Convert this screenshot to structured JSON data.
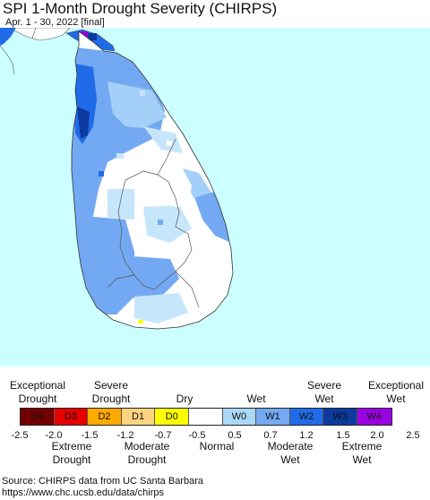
{
  "header": {
    "title": "SPI 1-Month Drought Severity (CHIRPS)",
    "subtitle": "Apr. 1 - 30, 2022 [final]"
  },
  "map": {
    "sea_color": "#ccffff",
    "land_normal_color": "#ffffff",
    "w_light_color": "#c6e6fb",
    "w0_color": "#a4cff9",
    "w1_color": "#73a9f2",
    "w2_color": "#1f6be8",
    "w3_color": "#0c3a9e",
    "d0_color": "#ffff00",
    "boundary_color": "#555555"
  },
  "legend": {
    "categories": [
      {
        "code": "D4",
        "color": "#730000"
      },
      {
        "code": "D3",
        "color": "#e60000"
      },
      {
        "code": "D2",
        "color": "#ffaa00"
      },
      {
        "code": "D1",
        "color": "#fcd37f"
      },
      {
        "code": "D0",
        "color": "#ffff00"
      },
      {
        "code": "",
        "color": "#ffffff"
      },
      {
        "code": "W0",
        "color": "#aad8f6"
      },
      {
        "code": "W1",
        "color": "#73a9f2"
      },
      {
        "code": "W2",
        "color": "#1f6be8"
      },
      {
        "code": "W3",
        "color": "#0c3a9e"
      },
      {
        "code": "W4",
        "color": "#9b00e0"
      }
    ],
    "ticks": [
      "-2.5",
      "-2.0",
      "-1.5",
      "-1.2",
      "-0.7",
      "-0.5",
      "0.5",
      "0.7",
      "1.2",
      "1.5",
      "2.0",
      "2.5"
    ],
    "top_labels": {
      "exceptional_drought": [
        "Exceptional",
        "Drought"
      ],
      "severe_drought": [
        "Severe",
        "Drought"
      ],
      "dry": [
        "Dry"
      ],
      "wet": [
        "Wet"
      ],
      "severe_wet": [
        "Severe",
        "Wet"
      ],
      "exceptional_wet": [
        "Exceptional",
        "Wet"
      ]
    },
    "bottom_labels": {
      "extreme_drought": [
        "Extreme",
        "Drought"
      ],
      "moderate_drought": [
        "Moderate",
        "Drought"
      ],
      "normal": [
        "Normal"
      ],
      "moderate_wet": [
        "Moderate",
        "Wet"
      ],
      "extreme_wet": [
        "Extreme",
        "Wet"
      ]
    }
  },
  "footer": {
    "source_line": "Source: CHIRPS data from UC Santa Barbara",
    "url_line": "https://www.chc.ucsb.edu/data/chirps"
  }
}
